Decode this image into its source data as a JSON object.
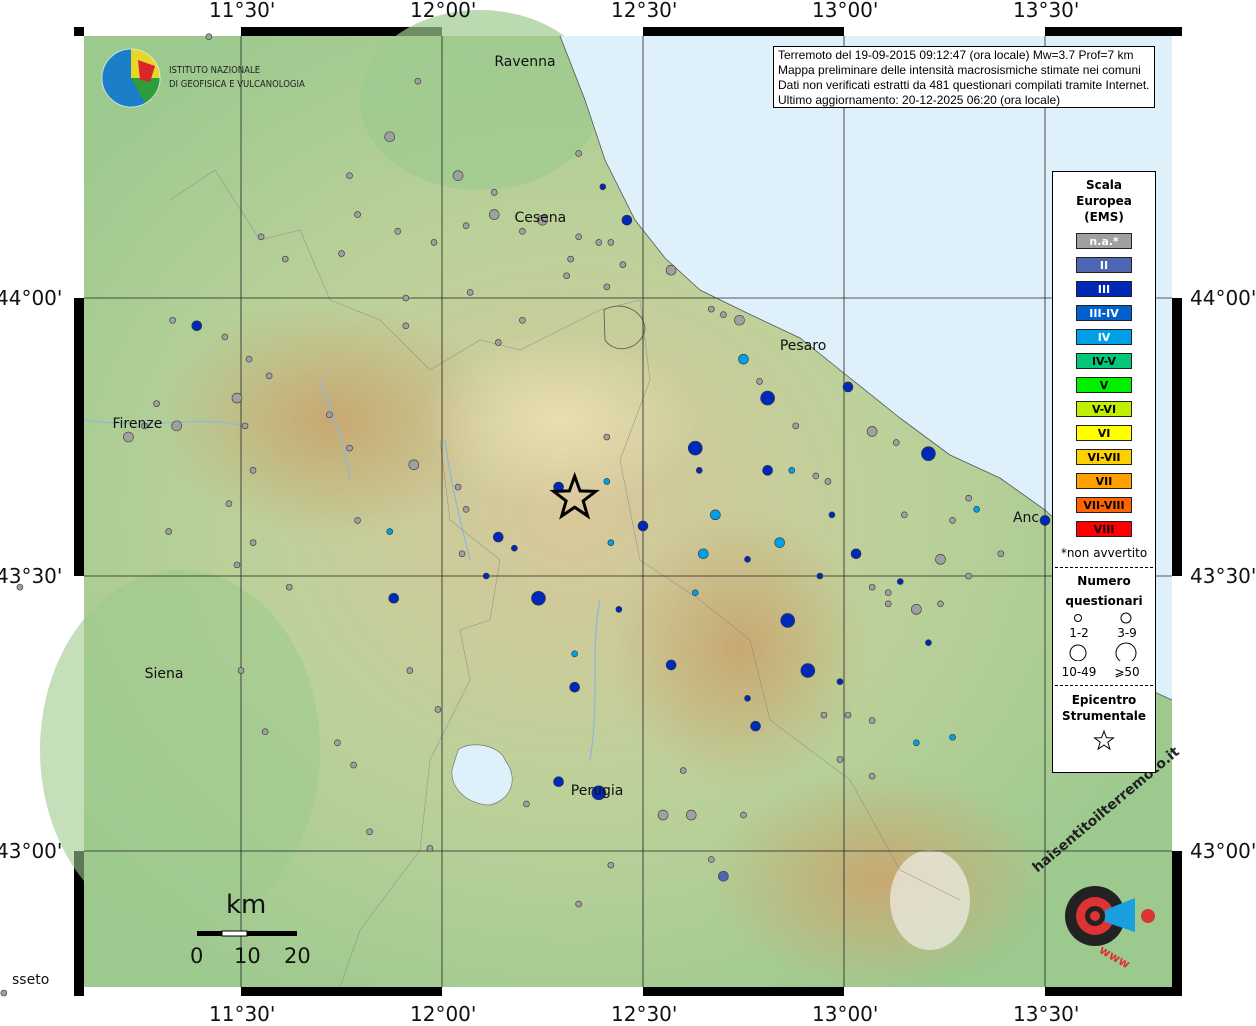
{
  "info_box": {
    "lines": [
      "Terremoto del 19-09-2015 09:12:47 (ora locale) Mw=3.7 Prof=7 km",
      "Mappa preliminare delle intensità macrosismiche stimate nei comuni",
      "Dati non verificati estratti da 481 questionari compilati tramite Internet.",
      "Ultimo aggiornamento: 20-12-2025 06:20 (ora locale)"
    ]
  },
  "logo_ingv": {
    "line1": "ISTITUTO NAZIONALE",
    "line2": "DI GEOFISICA E VULCANOLOGIA"
  },
  "logo_hsit": {
    "text": "haisentitoilterremoto.it",
    "www": "www"
  },
  "axes": {
    "lon_ticks": [
      "11°30'",
      "12°00'",
      "12°30'",
      "13°00'",
      "13°30'"
    ],
    "lat_ticks": [
      "44°00'",
      "43°30'",
      "43°00'"
    ]
  },
  "cities": [
    {
      "name": "Ravenna",
      "lon": 12.2,
      "lat": 44.42
    },
    {
      "name": "Cesena",
      "lon": 12.25,
      "lat": 44.14
    },
    {
      "name": "Pesaro",
      "lon": 12.91,
      "lat": 43.91
    },
    {
      "name": "Firenze",
      "lon": 11.25,
      "lat": 43.77
    },
    {
      "name": "Siena",
      "lon": 11.33,
      "lat": 43.32
    },
    {
      "name": "Perugia",
      "lon": 12.39,
      "lat": 43.11
    },
    {
      "name": "Anc",
      "lon": 13.49,
      "lat": 43.6
    },
    {
      "name": "sseto",
      "lon": 11.0,
      "lat": 42.77
    }
  ],
  "epicenter": {
    "lon": 12.33,
    "lat": 43.64
  },
  "legend": {
    "title": [
      "Scala",
      "Europea",
      "(EMS)"
    ],
    "scale": [
      {
        "label": "n.a.*",
        "color": "#a0a0a0",
        "text": "#fff"
      },
      {
        "label": "II",
        "color": "#4f66b0",
        "text": "#fff"
      },
      {
        "label": "III",
        "color": "#0029b8",
        "text": "#fff"
      },
      {
        "label": "III-IV",
        "color": "#0060cc",
        "text": "#fff"
      },
      {
        "label": "IV",
        "color": "#00a0e6",
        "text": "#fff"
      },
      {
        "label": "IV-V",
        "color": "#00c878",
        "text": "#000"
      },
      {
        "label": "V",
        "color": "#00f000",
        "text": "#000"
      },
      {
        "label": "V-VI",
        "color": "#c0f000",
        "text": "#000"
      },
      {
        "label": "VI",
        "color": "#ffff00",
        "text": "#000"
      },
      {
        "label": "VI-VII",
        "color": "#ffd000",
        "text": "#000"
      },
      {
        "label": "VII",
        "color": "#ffa000",
        "text": "#000"
      },
      {
        "label": "VII-VIII",
        "color": "#ff6400",
        "text": "#000"
      },
      {
        "label": "VIII",
        "color": "#ff0000",
        "text": "#000"
      }
    ],
    "note": "*non avvertito",
    "count_title": [
      "Numero",
      "questionari"
    ],
    "count_classes": [
      "1-2",
      "3-9",
      "10-49",
      "⩾50"
    ],
    "epicenter_title": [
      "Epicentro",
      "Strumentale"
    ]
  },
  "scale_bar": {
    "unit": "km",
    "labels": [
      "0",
      "10",
      "20"
    ]
  },
  "points": [
    {
      "lon": 11.42,
      "lat": 44.47,
      "i": "na",
      "s": 1
    },
    {
      "lon": 11.94,
      "lat": 44.39,
      "i": "na",
      "s": 1
    },
    {
      "lon": 12.34,
      "lat": 44.26,
      "i": "na",
      "s": 1
    },
    {
      "lon": 11.77,
      "lat": 44.22,
      "i": "na",
      "s": 1
    },
    {
      "lon": 11.79,
      "lat": 44.15,
      "i": "na",
      "s": 1
    },
    {
      "lon": 11.89,
      "lat": 44.12,
      "i": "na",
      "s": 1
    },
    {
      "lon": 11.98,
      "lat": 44.1,
      "i": "na",
      "s": 1
    },
    {
      "lon": 12.06,
      "lat": 44.13,
      "i": "na",
      "s": 1
    },
    {
      "lon": 12.13,
      "lat": 44.19,
      "i": "na",
      "s": 1
    },
    {
      "lon": 11.55,
      "lat": 44.11,
      "i": "na",
      "s": 1
    },
    {
      "lon": 11.61,
      "lat": 44.07,
      "i": "na",
      "s": 1
    },
    {
      "lon": 11.75,
      "lat": 44.08,
      "i": "na",
      "s": 1
    },
    {
      "lon": 12.2,
      "lat": 44.12,
      "i": "na",
      "s": 1
    },
    {
      "lon": 12.34,
      "lat": 44.11,
      "i": "na",
      "s": 1
    },
    {
      "lon": 12.39,
      "lat": 44.1,
      "i": "na",
      "s": 1
    },
    {
      "lon": 12.42,
      "lat": 44.1,
      "i": "na",
      "s": 1
    },
    {
      "lon": 12.32,
      "lat": 44.07,
      "i": "na",
      "s": 1
    },
    {
      "lon": 12.45,
      "lat": 44.06,
      "i": "na",
      "s": 1
    },
    {
      "lon": 12.31,
      "lat": 44.04,
      "i": "na",
      "s": 1
    },
    {
      "lon": 12.41,
      "lat": 44.02,
      "i": "na",
      "s": 1
    },
    {
      "lon": 11.91,
      "lat": 44.0,
      "i": "na",
      "s": 1
    },
    {
      "lon": 12.07,
      "lat": 44.01,
      "i": "na",
      "s": 1
    },
    {
      "lon": 12.2,
      "lat": 43.96,
      "i": "na",
      "s": 1
    },
    {
      "lon": 12.14,
      "lat": 43.92,
      "i": "na",
      "s": 1
    },
    {
      "lon": 11.91,
      "lat": 43.95,
      "i": "na",
      "s": 1
    },
    {
      "lon": 11.46,
      "lat": 43.93,
      "i": "na",
      "s": 1
    },
    {
      "lon": 11.33,
      "lat": 43.96,
      "i": "na",
      "s": 1
    },
    {
      "lon": 11.52,
      "lat": 43.89,
      "i": "na",
      "s": 1
    },
    {
      "lon": 11.57,
      "lat": 43.86,
      "i": "na",
      "s": 1
    },
    {
      "lon": 11.29,
      "lat": 43.81,
      "i": "na",
      "s": 1
    },
    {
      "lon": 11.26,
      "lat": 43.77,
      "i": "na",
      "s": 1
    },
    {
      "lon": 11.51,
      "lat": 43.77,
      "i": "na",
      "s": 1
    },
    {
      "lon": 11.72,
      "lat": 43.79,
      "i": "na",
      "s": 1
    },
    {
      "lon": 11.77,
      "lat": 43.73,
      "i": "na",
      "s": 1
    },
    {
      "lon": 11.53,
      "lat": 43.69,
      "i": "na",
      "s": 1
    },
    {
      "lon": 11.47,
      "lat": 43.63,
      "i": "na",
      "s": 1
    },
    {
      "lon": 11.32,
      "lat": 43.58,
      "i": "na",
      "s": 1
    },
    {
      "lon": 11.53,
      "lat": 43.56,
      "i": "na",
      "s": 1
    },
    {
      "lon": 11.49,
      "lat": 43.52,
      "i": "na",
      "s": 1
    },
    {
      "lon": 11.79,
      "lat": 43.6,
      "i": "na",
      "s": 1
    },
    {
      "lon": 12.04,
      "lat": 43.66,
      "i": "na",
      "s": 1
    },
    {
      "lon": 12.06,
      "lat": 43.62,
      "i": "na",
      "s": 1
    },
    {
      "lon": 12.05,
      "lat": 43.54,
      "i": "na",
      "s": 1
    },
    {
      "lon": 12.41,
      "lat": 43.75,
      "i": "na",
      "s": 1
    },
    {
      "lon": 12.67,
      "lat": 43.98,
      "i": "na",
      "s": 1
    },
    {
      "lon": 12.7,
      "lat": 43.97,
      "i": "na",
      "s": 1
    },
    {
      "lon": 12.79,
      "lat": 43.85,
      "i": "na",
      "s": 1
    },
    {
      "lon": 12.88,
      "lat": 43.77,
      "i": "na",
      "s": 1
    },
    {
      "lon": 12.96,
      "lat": 43.67,
      "i": "na",
      "s": 1
    },
    {
      "lon": 12.93,
      "lat": 43.68,
      "i": "na",
      "s": 1
    },
    {
      "lon": 13.13,
      "lat": 43.74,
      "i": "na",
      "s": 1
    },
    {
      "lon": 13.15,
      "lat": 43.61,
      "i": "na",
      "s": 1
    },
    {
      "lon": 13.31,
      "lat": 43.64,
      "i": "na",
      "s": 1
    },
    {
      "lon": 13.27,
      "lat": 43.6,
      "i": "na",
      "s": 1
    },
    {
      "lon": 13.39,
      "lat": 43.54,
      "i": "na",
      "s": 1
    },
    {
      "lon": 13.31,
      "lat": 43.5,
      "i": "na",
      "s": 1
    },
    {
      "lon": 13.07,
      "lat": 43.48,
      "i": "na",
      "s": 1
    },
    {
      "lon": 13.11,
      "lat": 43.47,
      "i": "na",
      "s": 1
    },
    {
      "lon": 13.11,
      "lat": 43.45,
      "i": "na",
      "s": 1
    },
    {
      "lon": 13.24,
      "lat": 43.45,
      "i": "na",
      "s": 1
    },
    {
      "lon": 10.95,
      "lat": 43.48,
      "i": "na",
      "s": 1
    },
    {
      "lon": 11.62,
      "lat": 43.48,
      "i": "na",
      "s": 1
    },
    {
      "lon": 11.5,
      "lat": 43.33,
      "i": "na",
      "s": 1
    },
    {
      "lon": 11.92,
      "lat": 43.33,
      "i": "na",
      "s": 1
    },
    {
      "lon": 11.99,
      "lat": 43.26,
      "i": "na",
      "s": 1
    },
    {
      "lon": 11.56,
      "lat": 43.22,
      "i": "na",
      "s": 1
    },
    {
      "lon": 11.74,
      "lat": 43.2,
      "i": "na",
      "s": 1
    },
    {
      "lon": 11.78,
      "lat": 43.16,
      "i": "na",
      "s": 1
    },
    {
      "lon": 11.82,
      "lat": 43.04,
      "i": "na",
      "s": 1
    },
    {
      "lon": 11.97,
      "lat": 43.01,
      "i": "na",
      "s": 1
    },
    {
      "lon": 12.21,
      "lat": 43.09,
      "i": "na",
      "s": 1
    },
    {
      "lon": 12.75,
      "lat": 43.07,
      "i": "na",
      "s": 1
    },
    {
      "lon": 12.67,
      "lat": 42.99,
      "i": "na",
      "s": 1
    },
    {
      "lon": 12.6,
      "lat": 43.15,
      "i": "na",
      "s": 1
    },
    {
      "lon": 12.99,
      "lat": 43.17,
      "i": "na",
      "s": 1
    },
    {
      "lon": 13.01,
      "lat": 43.25,
      "i": "na",
      "s": 1
    },
    {
      "lon": 12.95,
      "lat": 43.25,
      "i": "na",
      "s": 1
    },
    {
      "lon": 13.07,
      "lat": 43.24,
      "i": "na",
      "s": 1
    },
    {
      "lon": 13.07,
      "lat": 43.14,
      "i": "na",
      "s": 1
    },
    {
      "lon": 12.42,
      "lat": 42.98,
      "i": "na",
      "s": 1
    },
    {
      "lon": 12.34,
      "lat": 42.91,
      "i": "na",
      "s": 1
    },
    {
      "lon": 10.91,
      "lat": 42.75,
      "i": "na",
      "s": 1
    },
    {
      "lon": 11.87,
      "lat": 44.29,
      "i": "na",
      "s": 2
    },
    {
      "lon": 12.04,
      "lat": 44.22,
      "i": "na",
      "s": 2
    },
    {
      "lon": 12.13,
      "lat": 44.15,
      "i": "na",
      "s": 2
    },
    {
      "lon": 12.25,
      "lat": 44.14,
      "i": "na",
      "s": 2
    },
    {
      "lon": 12.57,
      "lat": 44.05,
      "i": "na",
      "s": 2
    },
    {
      "lon": 12.74,
      "lat": 43.96,
      "i": "na",
      "s": 2
    },
    {
      "lon": 11.49,
      "lat": 43.82,
      "i": "na",
      "s": 2
    },
    {
      "lon": 11.22,
      "lat": 43.75,
      "i": "na",
      "s": 2
    },
    {
      "lon": 11.34,
      "lat": 43.77,
      "i": "na",
      "s": 2
    },
    {
      "lon": 11.93,
      "lat": 43.7,
      "i": "na",
      "s": 2
    },
    {
      "lon": 13.07,
      "lat": 43.76,
      "i": "na",
      "s": 2
    },
    {
      "lon": 13.24,
      "lat": 43.53,
      "i": "na",
      "s": 2
    },
    {
      "lon": 13.18,
      "lat": 43.44,
      "i": "na",
      "s": 2
    },
    {
      "lon": 12.55,
      "lat": 43.07,
      "i": "na",
      "s": 2
    },
    {
      "lon": 12.62,
      "lat": 43.07,
      "i": "na",
      "s": 2
    },
    {
      "lon": 12.7,
      "lat": 42.96,
      "i": "II",
      "s": 2
    },
    {
      "lon": 11.39,
      "lat": 43.95,
      "i": "III",
      "s": 2
    },
    {
      "lon": 12.4,
      "lat": 44.2,
      "i": "III",
      "s": 1
    },
    {
      "lon": 12.46,
      "lat": 44.14,
      "i": "III",
      "s": 2
    },
    {
      "lon": 13.01,
      "lat": 43.84,
      "i": "III",
      "s": 2
    },
    {
      "lon": 12.81,
      "lat": 43.82,
      "i": "III",
      "s": 3
    },
    {
      "lon": 12.63,
      "lat": 43.73,
      "i": "III",
      "s": 3
    },
    {
      "lon": 12.81,
      "lat": 43.69,
      "i": "III",
      "s": 2
    },
    {
      "lon": 13.21,
      "lat": 43.72,
      "i": "III",
      "s": 3
    },
    {
      "lon": 12.29,
      "lat": 43.66,
      "i": "III",
      "s": 2
    },
    {
      "lon": 12.5,
      "lat": 43.59,
      "i": "III",
      "s": 2
    },
    {
      "lon": 12.14,
      "lat": 43.57,
      "i": "III",
      "s": 2
    },
    {
      "lon": 12.18,
      "lat": 43.55,
      "i": "III",
      "s": 1
    },
    {
      "lon": 12.11,
      "lat": 43.5,
      "i": "III",
      "s": 1
    },
    {
      "lon": 12.24,
      "lat": 43.46,
      "i": "III",
      "s": 3
    },
    {
      "lon": 11.88,
      "lat": 43.46,
      "i": "III",
      "s": 2
    },
    {
      "lon": 12.44,
      "lat": 43.44,
      "i": "III",
      "s": 1
    },
    {
      "lon": 12.33,
      "lat": 43.3,
      "i": "III",
      "s": 2
    },
    {
      "lon": 12.57,
      "lat": 43.34,
      "i": "III",
      "s": 2
    },
    {
      "lon": 12.91,
      "lat": 43.33,
      "i": "III",
      "s": 3
    },
    {
      "lon": 12.86,
      "lat": 43.42,
      "i": "III",
      "s": 3
    },
    {
      "lon": 13.03,
      "lat": 43.54,
      "i": "III",
      "s": 2
    },
    {
      "lon": 12.94,
      "lat": 43.5,
      "i": "III",
      "s": 1
    },
    {
      "lon": 13.14,
      "lat": 43.49,
      "i": "III",
      "s": 1
    },
    {
      "lon": 13.21,
      "lat": 43.38,
      "i": "III",
      "s": 1
    },
    {
      "lon": 12.99,
      "lat": 43.31,
      "i": "III",
      "s": 1
    },
    {
      "lon": 12.76,
      "lat": 43.28,
      "i": "III",
      "s": 1
    },
    {
      "lon": 12.78,
      "lat": 43.23,
      "i": "III",
      "s": 2
    },
    {
      "lon": 12.29,
      "lat": 43.13,
      "i": "III",
      "s": 2
    },
    {
      "lon": 12.39,
      "lat": 43.11,
      "i": "III",
      "s": 3
    },
    {
      "lon": 12.64,
      "lat": 43.69,
      "i": "III",
      "s": 1
    },
    {
      "lon": 12.97,
      "lat": 43.61,
      "i": "III",
      "s": 1
    },
    {
      "lon": 12.76,
      "lat": 43.53,
      "i": "III",
      "s": 1
    },
    {
      "lon": 13.5,
      "lat": 43.6,
      "i": "III",
      "s": 2
    },
    {
      "lon": 12.75,
      "lat": 43.89,
      "i": "IV",
      "s": 2
    },
    {
      "lon": 12.68,
      "lat": 43.61,
      "i": "IV",
      "s": 2
    },
    {
      "lon": 12.65,
      "lat": 43.54,
      "i": "IV",
      "s": 2
    },
    {
      "lon": 12.87,
      "lat": 43.69,
      "i": "IV",
      "s": 1
    },
    {
      "lon": 12.84,
      "lat": 43.56,
      "i": "IV",
      "s": 2
    },
    {
      "lon": 12.42,
      "lat": 43.56,
      "i": "IV",
      "s": 1
    },
    {
      "lon": 12.41,
      "lat": 43.67,
      "i": "IV",
      "s": 1
    },
    {
      "lon": 11.87,
      "lat": 43.58,
      "i": "IV",
      "s": 1
    },
    {
      "lon": 12.33,
      "lat": 43.36,
      "i": "IV",
      "s": 1
    },
    {
      "lon": 12.63,
      "lat": 43.47,
      "i": "IV",
      "s": 1
    },
    {
      "lon": 13.18,
      "lat": 43.2,
      "i": "IV",
      "s": 1
    },
    {
      "lon": 13.27,
      "lat": 43.21,
      "i": "IV",
      "s": 1
    },
    {
      "lon": 13.33,
      "lat": 43.62,
      "i": "IV",
      "s": 1
    }
  ]
}
